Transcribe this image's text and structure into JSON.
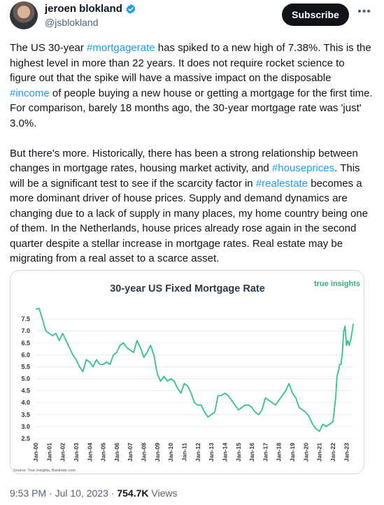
{
  "author": {
    "name": "jeroen blokland",
    "handle": "@jsblokland",
    "verified": true
  },
  "header": {
    "subscribe_label": "Subscribe",
    "more_icon": "more-icon"
  },
  "tweet": {
    "p1": [
      {
        "t": "The US 30-year "
      },
      {
        "t": "#mortgagerate",
        "tag": true
      },
      {
        "t": " has spiked to a new high of 7.38%. This is the highest level in more than 22 years. It does not require rocket science to figure out that the spike will have a massive impact on the disposable "
      },
      {
        "t": "#income",
        "tag": true
      },
      {
        "t": " of people buying a new house or getting a mortgage for the first time. For comparison, barely 18 months ago, the 30-year mortgage rate was 'just' 3.0%."
      }
    ],
    "p2": [
      {
        "t": "But there's more. Historically, there has been a strong relationship between changes in mortgage rates, housing market activity, and "
      },
      {
        "t": "#houseprices",
        "tag": true
      },
      {
        "t": ". This will be a significant test to see if the scarcity factor in "
      },
      {
        "t": "#realestate",
        "tag": true
      },
      {
        "t": " becomes a more dominant driver of house prices. Supply and demand dynamics are changing due to a lack of supply in many places, my home country being one of them. In the Netherlands, house prices already rose again in the second quarter despite a stellar increase in mortgage rates. Real estate may be migrating from a real asset to a scarce asset."
      }
    ]
  },
  "chart_data": {
    "type": "line",
    "title": "30-year US Fixed Mortgage Rate",
    "brand": "true insights",
    "source": "Source: True Insights, Bankrate.com",
    "line_color": "#33c28a",
    "ylim": [
      2.5,
      8.0
    ],
    "yticks": [
      "2.5",
      "3.0",
      "3.5",
      "4.0",
      "4.5",
      "5.0",
      "5.5",
      "6.0",
      "6.5",
      "7.0",
      "7.5"
    ],
    "xticks": [
      "Jan-00",
      "Jan-01",
      "Jan-02",
      "Jan-03",
      "Jan-04",
      "Jan-05",
      "Jan-06",
      "Jan-07",
      "Jan-08",
      "Jan-09",
      "Jan-10",
      "Jan-11",
      "Jan-12",
      "Jan-13",
      "Jan-14",
      "Jan-15",
      "Jan-16",
      "Jan-17",
      "Jan-18",
      "Jan-19",
      "Jan-20",
      "Jan-21",
      "Jan-22",
      "Jan-23"
    ],
    "series": [
      {
        "x": [
          2000.0,
          2000.25,
          2000.5,
          2000.75,
          2001.0,
          2001.25,
          2001.5,
          2001.75,
          2002.0,
          2002.25,
          2002.5,
          2002.75,
          2003.0,
          2003.25,
          2003.5,
          2003.75,
          2004.0,
          2004.25,
          2004.5,
          2004.75,
          2005.0,
          2005.25,
          2005.5,
          2005.75,
          2006.0,
          2006.25,
          2006.5,
          2006.75,
          2007.0,
          2007.25,
          2007.5,
          2007.75,
          2008.0,
          2008.25,
          2008.5,
          2008.75,
          2009.0,
          2009.25,
          2009.5,
          2009.75,
          2010.0,
          2010.25,
          2010.5,
          2010.75,
          2011.0,
          2011.25,
          2011.5,
          2011.75,
          2012.0,
          2012.25,
          2012.5,
          2012.75,
          2013.0,
          2013.25,
          2013.5,
          2013.75,
          2014.0,
          2014.25,
          2014.5,
          2014.75,
          2015.0,
          2015.25,
          2015.5,
          2015.75,
          2016.0,
          2016.25,
          2016.5,
          2016.75,
          2017.0,
          2017.25,
          2017.5,
          2017.75,
          2018.0,
          2018.25,
          2018.5,
          2018.75,
          2019.0,
          2019.25,
          2019.5,
          2019.75,
          2020.0,
          2020.25,
          2020.5,
          2020.75,
          2021.0,
          2021.25,
          2021.5,
          2021.75,
          2022.0,
          2022.1,
          2022.2,
          2022.3,
          2022.4,
          2022.5,
          2022.6,
          2022.7,
          2022.8,
          2022.9,
          2023.0,
          2023.1,
          2023.2,
          2023.3,
          2023.4,
          2023.5
        ],
        "y": [
          7.9,
          7.95,
          7.5,
          7.0,
          6.9,
          6.8,
          6.9,
          6.6,
          6.9,
          6.6,
          6.3,
          6.0,
          5.8,
          5.5,
          5.3,
          5.8,
          5.7,
          5.5,
          5.8,
          5.6,
          5.6,
          5.7,
          5.6,
          6.0,
          6.1,
          6.4,
          6.5,
          6.3,
          6.2,
          6.1,
          6.6,
          6.3,
          5.9,
          6.1,
          6.4,
          6.0,
          5.2,
          4.9,
          5.1,
          4.9,
          5.0,
          4.9,
          4.6,
          4.4,
          4.8,
          4.7,
          4.4,
          4.0,
          3.9,
          3.9,
          3.6,
          3.4,
          3.5,
          3.6,
          4.3,
          4.3,
          4.4,
          4.3,
          4.1,
          3.9,
          3.7,
          3.8,
          3.9,
          3.9,
          3.8,
          3.6,
          3.5,
          3.7,
          4.2,
          4.1,
          4.0,
          3.9,
          4.1,
          4.3,
          4.5,
          4.8,
          4.4,
          4.2,
          3.8,
          3.7,
          3.6,
          3.4,
          3.1,
          2.9,
          2.8,
          3.1,
          3.0,
          3.1,
          3.2,
          3.7,
          4.2,
          5.1,
          5.3,
          5.6,
          5.6,
          6.1,
          7.0,
          7.2,
          6.4,
          6.6,
          6.4,
          6.6,
          6.9,
          7.3
        ]
      }
    ]
  },
  "footer": {
    "time": "9:53 PM",
    "date": "Jul 10, 2023",
    "views": "754.7K",
    "views_label": "Views"
  }
}
